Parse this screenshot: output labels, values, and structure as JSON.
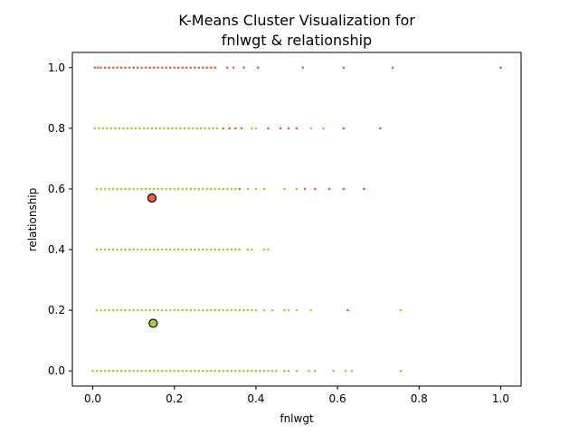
{
  "chart_data": {
    "type": "scatter",
    "title_lines": [
      "K-Means Cluster Visualization for",
      "fnlwgt & relationship"
    ],
    "xlabel": "fnlwgt",
    "ylabel": "relationship",
    "xlim": [
      -0.05,
      1.05
    ],
    "ylim": [
      -0.05,
      1.05
    ],
    "xticks": [
      "0.0",
      "0.2",
      "0.4",
      "0.6",
      "0.8",
      "1.0"
    ],
    "yticks": [
      "0.0",
      "0.2",
      "0.4",
      "0.6",
      "0.8",
      "1.0"
    ],
    "grid": false,
    "colors": {
      "cluster_a": "#e8613c",
      "cluster_b": "#a6cf3a",
      "centroid_edge": "#000000"
    },
    "centroids": [
      {
        "cluster": "cluster_a",
        "x": 0.145,
        "y": 0.57
      },
      {
        "cluster": "cluster_b",
        "x": 0.148,
        "y": 0.157
      }
    ],
    "series": [
      {
        "cluster": "cluster_a",
        "points": [
          [
            0.005,
            1.0
          ],
          [
            0.012,
            1.0
          ],
          [
            0.02,
            1.0
          ],
          [
            0.03,
            1.0
          ],
          [
            0.04,
            1.0
          ],
          [
            0.05,
            1.0
          ],
          [
            0.06,
            1.0
          ],
          [
            0.07,
            1.0
          ],
          [
            0.08,
            1.0
          ],
          [
            0.09,
            1.0
          ],
          [
            0.1,
            1.0
          ],
          [
            0.11,
            1.0
          ],
          [
            0.12,
            1.0
          ],
          [
            0.13,
            1.0
          ],
          [
            0.14,
            1.0
          ],
          [
            0.15,
            1.0
          ],
          [
            0.16,
            1.0
          ],
          [
            0.17,
            1.0
          ],
          [
            0.18,
            1.0
          ],
          [
            0.19,
            1.0
          ],
          [
            0.2,
            1.0
          ],
          [
            0.21,
            1.0
          ],
          [
            0.22,
            1.0
          ],
          [
            0.23,
            1.0
          ],
          [
            0.24,
            1.0
          ],
          [
            0.25,
            1.0
          ],
          [
            0.26,
            1.0
          ],
          [
            0.27,
            1.0
          ],
          [
            0.28,
            1.0
          ],
          [
            0.29,
            1.0
          ],
          [
            0.3,
            1.0
          ],
          [
            0.33,
            1.0
          ],
          [
            0.345,
            1.0
          ],
          [
            0.37,
            1.0
          ],
          [
            0.405,
            1.0
          ],
          [
            0.515,
            1.0
          ],
          [
            0.615,
            1.0
          ],
          [
            0.735,
            1.0
          ],
          [
            1.0,
            1.0
          ],
          [
            0.32,
            0.8
          ],
          [
            0.335,
            0.8
          ],
          [
            0.35,
            0.8
          ],
          [
            0.365,
            0.8
          ],
          [
            0.43,
            0.8
          ],
          [
            0.46,
            0.8
          ],
          [
            0.48,
            0.8
          ],
          [
            0.5,
            0.8
          ],
          [
            0.615,
            0.8
          ],
          [
            0.705,
            0.8
          ],
          [
            0.36,
            0.6
          ],
          [
            0.52,
            0.6
          ],
          [
            0.545,
            0.6
          ],
          [
            0.58,
            0.6
          ],
          [
            0.615,
            0.6
          ],
          [
            0.665,
            0.6
          ],
          [
            0.625,
            0.2
          ]
        ]
      },
      {
        "cluster": "cluster_b",
        "points": [
          [
            0.005,
            0.8
          ],
          [
            0.015,
            0.8
          ],
          [
            0.025,
            0.8
          ],
          [
            0.035,
            0.8
          ],
          [
            0.045,
            0.8
          ],
          [
            0.055,
            0.8
          ],
          [
            0.065,
            0.8
          ],
          [
            0.075,
            0.8
          ],
          [
            0.085,
            0.8
          ],
          [
            0.095,
            0.8
          ],
          [
            0.105,
            0.8
          ],
          [
            0.115,
            0.8
          ],
          [
            0.125,
            0.8
          ],
          [
            0.135,
            0.8
          ],
          [
            0.145,
            0.8
          ],
          [
            0.155,
            0.8
          ],
          [
            0.165,
            0.8
          ],
          [
            0.175,
            0.8
          ],
          [
            0.185,
            0.8
          ],
          [
            0.195,
            0.8
          ],
          [
            0.205,
            0.8
          ],
          [
            0.215,
            0.8
          ],
          [
            0.225,
            0.8
          ],
          [
            0.235,
            0.8
          ],
          [
            0.245,
            0.8
          ],
          [
            0.255,
            0.8
          ],
          [
            0.265,
            0.8
          ],
          [
            0.275,
            0.8
          ],
          [
            0.285,
            0.8
          ],
          [
            0.295,
            0.8
          ],
          [
            0.305,
            0.8
          ],
          [
            0.39,
            0.8
          ],
          [
            0.4,
            0.8
          ],
          [
            0.535,
            0.8
          ],
          [
            0.565,
            0.8
          ],
          [
            0.01,
            0.6
          ],
          [
            0.02,
            0.6
          ],
          [
            0.03,
            0.6
          ],
          [
            0.04,
            0.6
          ],
          [
            0.05,
            0.6
          ],
          [
            0.06,
            0.6
          ],
          [
            0.07,
            0.6
          ],
          [
            0.08,
            0.6
          ],
          [
            0.09,
            0.6
          ],
          [
            0.1,
            0.6
          ],
          [
            0.11,
            0.6
          ],
          [
            0.12,
            0.6
          ],
          [
            0.13,
            0.6
          ],
          [
            0.14,
            0.6
          ],
          [
            0.15,
            0.6
          ],
          [
            0.16,
            0.6
          ],
          [
            0.17,
            0.6
          ],
          [
            0.18,
            0.6
          ],
          [
            0.19,
            0.6
          ],
          [
            0.2,
            0.6
          ],
          [
            0.21,
            0.6
          ],
          [
            0.22,
            0.6
          ],
          [
            0.23,
            0.6
          ],
          [
            0.24,
            0.6
          ],
          [
            0.25,
            0.6
          ],
          [
            0.26,
            0.6
          ],
          [
            0.27,
            0.6
          ],
          [
            0.28,
            0.6
          ],
          [
            0.29,
            0.6
          ],
          [
            0.3,
            0.6
          ],
          [
            0.31,
            0.6
          ],
          [
            0.32,
            0.6
          ],
          [
            0.33,
            0.6
          ],
          [
            0.34,
            0.6
          ],
          [
            0.35,
            0.6
          ],
          [
            0.38,
            0.6
          ],
          [
            0.4,
            0.6
          ],
          [
            0.42,
            0.6
          ],
          [
            0.47,
            0.6
          ],
          [
            0.5,
            0.6
          ],
          [
            0.01,
            0.4
          ],
          [
            0.02,
            0.4
          ],
          [
            0.03,
            0.4
          ],
          [
            0.04,
            0.4
          ],
          [
            0.05,
            0.4
          ],
          [
            0.06,
            0.4
          ],
          [
            0.07,
            0.4
          ],
          [
            0.08,
            0.4
          ],
          [
            0.09,
            0.4
          ],
          [
            0.1,
            0.4
          ],
          [
            0.11,
            0.4
          ],
          [
            0.12,
            0.4
          ],
          [
            0.13,
            0.4
          ],
          [
            0.14,
            0.4
          ],
          [
            0.15,
            0.4
          ],
          [
            0.16,
            0.4
          ],
          [
            0.17,
            0.4
          ],
          [
            0.18,
            0.4
          ],
          [
            0.19,
            0.4
          ],
          [
            0.2,
            0.4
          ],
          [
            0.21,
            0.4
          ],
          [
            0.22,
            0.4
          ],
          [
            0.23,
            0.4
          ],
          [
            0.24,
            0.4
          ],
          [
            0.25,
            0.4
          ],
          [
            0.26,
            0.4
          ],
          [
            0.27,
            0.4
          ],
          [
            0.28,
            0.4
          ],
          [
            0.29,
            0.4
          ],
          [
            0.3,
            0.4
          ],
          [
            0.31,
            0.4
          ],
          [
            0.32,
            0.4
          ],
          [
            0.33,
            0.4
          ],
          [
            0.34,
            0.4
          ],
          [
            0.35,
            0.4
          ],
          [
            0.36,
            0.4
          ],
          [
            0.38,
            0.4
          ],
          [
            0.39,
            0.4
          ],
          [
            0.42,
            0.4
          ],
          [
            0.43,
            0.4
          ],
          [
            0.01,
            0.2
          ],
          [
            0.02,
            0.2
          ],
          [
            0.03,
            0.2
          ],
          [
            0.04,
            0.2
          ],
          [
            0.05,
            0.2
          ],
          [
            0.06,
            0.2
          ],
          [
            0.07,
            0.2
          ],
          [
            0.08,
            0.2
          ],
          [
            0.09,
            0.2
          ],
          [
            0.1,
            0.2
          ],
          [
            0.11,
            0.2
          ],
          [
            0.12,
            0.2
          ],
          [
            0.13,
            0.2
          ],
          [
            0.14,
            0.2
          ],
          [
            0.15,
            0.2
          ],
          [
            0.16,
            0.2
          ],
          [
            0.17,
            0.2
          ],
          [
            0.18,
            0.2
          ],
          [
            0.19,
            0.2
          ],
          [
            0.2,
            0.2
          ],
          [
            0.21,
            0.2
          ],
          [
            0.22,
            0.2
          ],
          [
            0.23,
            0.2
          ],
          [
            0.24,
            0.2
          ],
          [
            0.25,
            0.2
          ],
          [
            0.26,
            0.2
          ],
          [
            0.27,
            0.2
          ],
          [
            0.28,
            0.2
          ],
          [
            0.29,
            0.2
          ],
          [
            0.3,
            0.2
          ],
          [
            0.31,
            0.2
          ],
          [
            0.32,
            0.2
          ],
          [
            0.33,
            0.2
          ],
          [
            0.34,
            0.2
          ],
          [
            0.35,
            0.2
          ],
          [
            0.36,
            0.2
          ],
          [
            0.37,
            0.2
          ],
          [
            0.38,
            0.2
          ],
          [
            0.39,
            0.2
          ],
          [
            0.4,
            0.2
          ],
          [
            0.42,
            0.2
          ],
          [
            0.44,
            0.2
          ],
          [
            0.47,
            0.2
          ],
          [
            0.48,
            0.2
          ],
          [
            0.5,
            0.2
          ],
          [
            0.535,
            0.2
          ],
          [
            0.755,
            0.2
          ],
          [
            0.0,
            0.0
          ],
          [
            0.01,
            0.0
          ],
          [
            0.02,
            0.0
          ],
          [
            0.03,
            0.0
          ],
          [
            0.04,
            0.0
          ],
          [
            0.05,
            0.0
          ],
          [
            0.06,
            0.0
          ],
          [
            0.07,
            0.0
          ],
          [
            0.08,
            0.0
          ],
          [
            0.09,
            0.0
          ],
          [
            0.1,
            0.0
          ],
          [
            0.11,
            0.0
          ],
          [
            0.12,
            0.0
          ],
          [
            0.13,
            0.0
          ],
          [
            0.14,
            0.0
          ],
          [
            0.15,
            0.0
          ],
          [
            0.16,
            0.0
          ],
          [
            0.17,
            0.0
          ],
          [
            0.18,
            0.0
          ],
          [
            0.19,
            0.0
          ],
          [
            0.2,
            0.0
          ],
          [
            0.21,
            0.0
          ],
          [
            0.22,
            0.0
          ],
          [
            0.23,
            0.0
          ],
          [
            0.24,
            0.0
          ],
          [
            0.25,
            0.0
          ],
          [
            0.26,
            0.0
          ],
          [
            0.27,
            0.0
          ],
          [
            0.28,
            0.0
          ],
          [
            0.29,
            0.0
          ],
          [
            0.3,
            0.0
          ],
          [
            0.31,
            0.0
          ],
          [
            0.32,
            0.0
          ],
          [
            0.33,
            0.0
          ],
          [
            0.34,
            0.0
          ],
          [
            0.35,
            0.0
          ],
          [
            0.36,
            0.0
          ],
          [
            0.37,
            0.0
          ],
          [
            0.38,
            0.0
          ],
          [
            0.39,
            0.0
          ],
          [
            0.4,
            0.0
          ],
          [
            0.41,
            0.0
          ],
          [
            0.42,
            0.0
          ],
          [
            0.43,
            0.0
          ],
          [
            0.44,
            0.0
          ],
          [
            0.45,
            0.0
          ],
          [
            0.47,
            0.0
          ],
          [
            0.48,
            0.0
          ],
          [
            0.5,
            0.0
          ],
          [
            0.53,
            0.0
          ],
          [
            0.545,
            0.0
          ],
          [
            0.59,
            0.0
          ],
          [
            0.62,
            0.0
          ],
          [
            0.635,
            0.0
          ],
          [
            0.755,
            0.0
          ]
        ]
      }
    ]
  }
}
